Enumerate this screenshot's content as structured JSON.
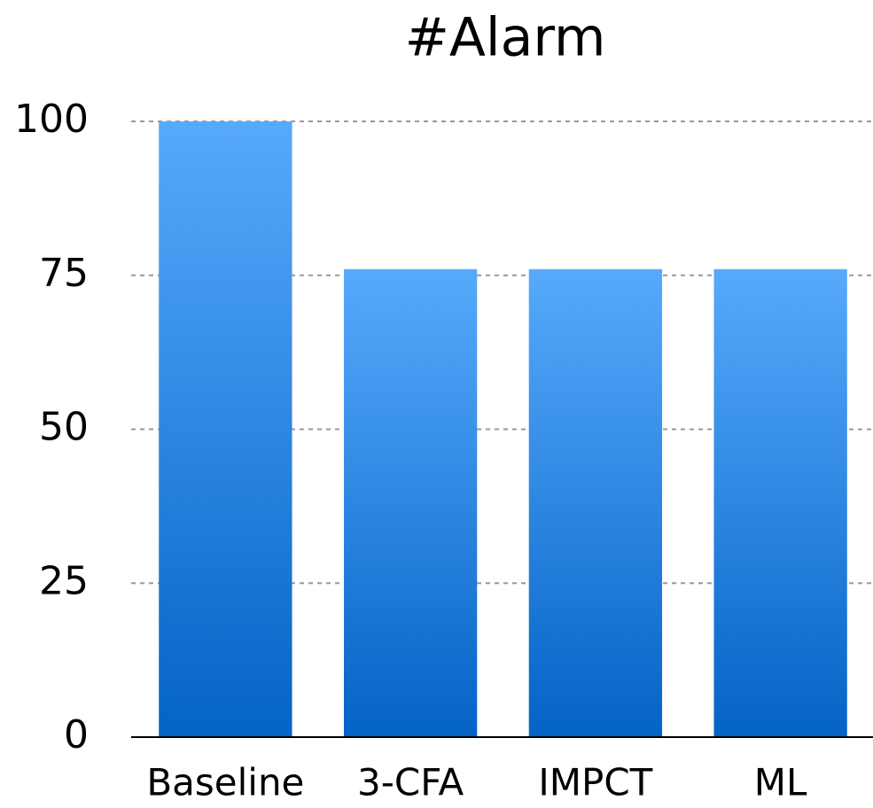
{
  "chart_data": {
    "type": "bar",
    "title": "#Alarm",
    "categories": [
      "Baseline",
      "3-CFA",
      "IMPCT",
      "ML"
    ],
    "values": [
      100,
      76,
      76,
      76
    ],
    "gradient": [
      "#57aafc",
      "#0463c6"
    ],
    "ylim": [
      0,
      100
    ],
    "yticks": [
      0,
      25,
      50,
      75,
      100
    ],
    "grid": true
  }
}
